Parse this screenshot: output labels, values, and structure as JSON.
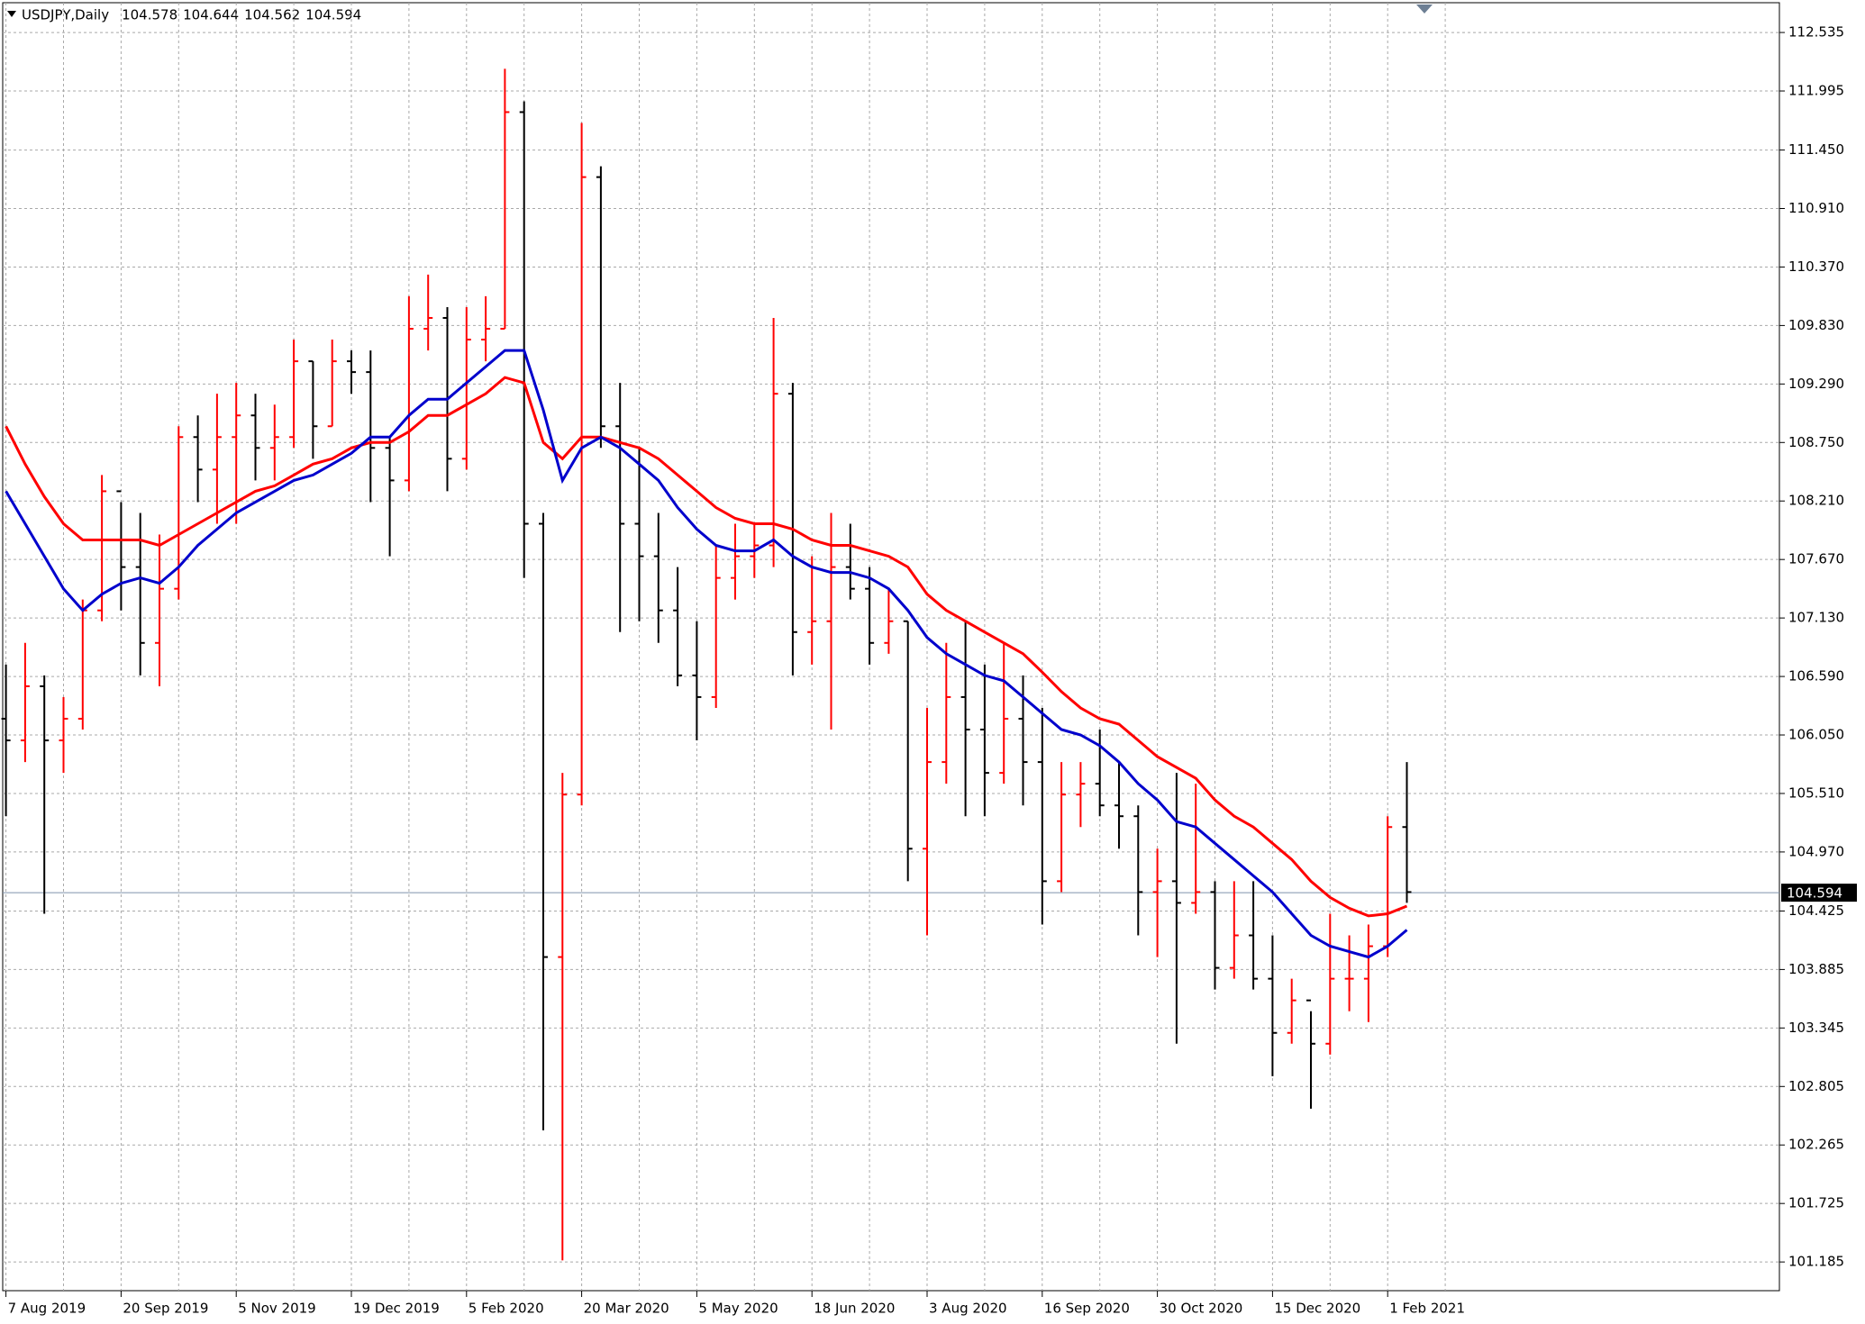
{
  "chart_data": {
    "type": "ohlc",
    "symbol": "USDJPY,Daily",
    "ohlc": [
      104.578,
      104.644,
      104.562,
      104.594
    ],
    "categories": [
      "7 Aug 2019",
      null,
      null,
      null,
      null,
      null,
      "20 Sep 2019",
      null,
      null,
      null,
      null,
      null,
      "5 Nov 2019",
      null,
      null,
      null,
      null,
      null,
      "19 Dec 2019",
      null,
      null,
      null,
      null,
      null,
      "5 Feb 2020",
      null,
      null,
      null,
      null,
      null,
      "20 Mar 2020",
      null,
      null,
      null,
      null,
      null,
      "5 May 2020",
      null,
      null,
      null,
      null,
      null,
      "18 Jun 2020",
      null,
      null,
      null,
      null,
      null,
      "3 Aug 2020",
      null,
      null,
      null,
      null,
      null,
      "16 Sep 2020",
      null,
      null,
      null,
      null,
      null,
      "30 Oct 2020",
      null,
      null,
      null,
      null,
      null,
      "15 Dec 2020",
      null,
      null,
      null,
      null,
      null,
      "1 Feb 2021",
      null
    ],
    "open": [
      106.2,
      106.0,
      106.5,
      106.0,
      106.2,
      107.2,
      108.3,
      107.6,
      106.9,
      107.4,
      108.8,
      108.5,
      108.8,
      109.0,
      108.7,
      108.8,
      109.5,
      108.9,
      109.5,
      109.4,
      108.7,
      108.4,
      109.8,
      109.9,
      108.6,
      109.7,
      109.8,
      111.8,
      108.0,
      104.0,
      105.5,
      111.2,
      108.9,
      108.0,
      107.7,
      107.2,
      106.6,
      106.4,
      107.5,
      107.7,
      107.8,
      109.2,
      107.0,
      107.1,
      107.6,
      107.4,
      106.9,
      107.1,
      105.0,
      105.8,
      106.4,
      106.1,
      105.7,
      106.2,
      105.8,
      104.7,
      105.5,
      105.6,
      105.4,
      105.3,
      104.6,
      104.7,
      104.5,
      104.6,
      103.9,
      104.2,
      103.8,
      103.3,
      103.6,
      103.2,
      103.8,
      103.8,
      104.1,
      105.2
    ],
    "high": [
      106.7,
      106.9,
      106.6,
      106.4,
      107.3,
      108.45,
      108.2,
      108.1,
      107.9,
      108.9,
      109.0,
      109.2,
      109.3,
      109.2,
      109.1,
      109.7,
      109.5,
      109.7,
      109.6,
      109.6,
      108.8,
      110.1,
      110.3,
      110.0,
      110.0,
      110.1,
      112.2,
      111.9,
      108.1,
      105.7,
      111.7,
      111.3,
      109.3,
      108.7,
      108.1,
      107.6,
      107.1,
      107.8,
      108.0,
      108.0,
      109.9,
      109.3,
      107.7,
      108.1,
      108.0,
      107.6,
      107.4,
      107.1,
      106.3,
      106.9,
      107.1,
      106.7,
      106.9,
      106.6,
      106.3,
      105.8,
      105.8,
      106.1,
      105.8,
      105.4,
      105.0,
      105.7,
      105.6,
      104.7,
      104.7,
      104.7,
      104.2,
      103.8,
      103.5,
      104.4,
      104.2,
      104.3,
      105.3,
      105.8
    ],
    "low": [
      105.3,
      105.8,
      104.4,
      105.7,
      106.1,
      107.1,
      107.2,
      106.6,
      106.5,
      107.3,
      108.2,
      108.0,
      108.0,
      108.4,
      108.4,
      108.7,
      108.6,
      108.9,
      109.2,
      108.2,
      107.7,
      108.3,
      109.6,
      108.3,
      108.5,
      109.5,
      109.8,
      107.5,
      102.4,
      101.2,
      105.4,
      108.7,
      107.0,
      107.1,
      106.9,
      106.5,
      106.0,
      106.3,
      107.3,
      107.5,
      107.6,
      106.6,
      106.7,
      106.1,
      107.3,
      106.7,
      106.8,
      104.7,
      104.2,
      105.6,
      105.3,
      105.3,
      105.6,
      105.4,
      104.3,
      104.6,
      105.2,
      105.3,
      105.0,
      104.2,
      104.0,
      103.2,
      104.4,
      103.7,
      103.8,
      103.7,
      102.9,
      103.2,
      102.6,
      103.1,
      103.5,
      103.4,
      104.0,
      104.5
    ],
    "close": [
      106.0,
      106.5,
      106.0,
      106.2,
      107.2,
      108.3,
      107.6,
      106.9,
      107.4,
      108.8,
      108.5,
      108.8,
      109.0,
      108.7,
      108.8,
      109.5,
      108.9,
      109.5,
      109.4,
      108.7,
      108.4,
      109.8,
      109.9,
      108.6,
      109.7,
      109.8,
      111.8,
      108.0,
      104.0,
      105.5,
      111.2,
      108.9,
      108.0,
      107.7,
      107.2,
      106.6,
      106.4,
      107.5,
      107.7,
      107.8,
      109.2,
      107.0,
      107.1,
      107.6,
      107.4,
      106.9,
      107.1,
      105.0,
      105.8,
      106.4,
      106.1,
      105.7,
      106.2,
      105.8,
      104.7,
      105.5,
      105.6,
      105.4,
      105.3,
      104.6,
      104.7,
      104.5,
      104.6,
      103.9,
      104.2,
      103.8,
      103.3,
      103.6,
      103.2,
      103.8,
      103.8,
      104.1,
      105.2,
      104.6
    ],
    "up_color": "#ff0000",
    "down_color": "#000000",
    "series": [
      {
        "color": "#ff0000",
        "values": [
          108.9,
          108.55,
          108.25,
          108.0,
          107.85,
          107.85,
          107.85,
          107.85,
          107.8,
          107.9,
          108.0,
          108.1,
          108.2,
          108.3,
          108.35,
          108.45,
          108.55,
          108.6,
          108.7,
          108.75,
          108.75,
          108.85,
          109.0,
          109.0,
          109.1,
          109.2,
          109.35,
          109.3,
          108.75,
          108.6,
          108.8,
          108.8,
          108.75,
          108.7,
          108.6,
          108.45,
          108.3,
          108.15,
          108.05,
          108.0,
          108.0,
          107.95,
          107.85,
          107.8,
          107.8,
          107.75,
          107.7,
          107.6,
          107.35,
          107.2,
          107.1,
          107.0,
          106.9,
          106.8,
          106.63,
          106.45,
          106.3,
          106.2,
          106.15,
          106.0,
          105.85,
          105.75,
          105.65,
          105.45,
          105.3,
          105.2,
          105.05,
          104.9,
          104.7,
          104.55,
          104.45,
          104.38,
          104.4,
          104.47
        ]
      },
      {
        "color": "#0000cc",
        "values": [
          108.3,
          108.0,
          107.7,
          107.4,
          107.2,
          107.35,
          107.45,
          107.5,
          107.45,
          107.6,
          107.8,
          107.95,
          108.1,
          108.2,
          108.3,
          108.4,
          108.45,
          108.55,
          108.65,
          108.8,
          108.8,
          109.0,
          109.15,
          109.15,
          109.3,
          109.45,
          109.6,
          109.6,
          109.05,
          108.4,
          108.7,
          108.8,
          108.7,
          108.55,
          108.4,
          108.15,
          107.95,
          107.8,
          107.75,
          107.75,
          107.85,
          107.7,
          107.6,
          107.55,
          107.55,
          107.5,
          107.4,
          107.2,
          106.95,
          106.8,
          106.7,
          106.6,
          106.55,
          106.4,
          106.25,
          106.1,
          106.05,
          105.95,
          105.8,
          105.6,
          105.45,
          105.25,
          105.2,
          105.05,
          104.9,
          104.75,
          104.6,
          104.4,
          104.2,
          104.1,
          104.05,
          104.0,
          104.1,
          104.25
        ]
      }
    ],
    "ylim": [
      100.92,
      112.81
    ],
    "yticks": [
      112.535,
      111.995,
      {
        "value": 111.45,
        "label": "111.450"
      },
      {
        "value": 110.91,
        "label": "110.910"
      },
      {
        "value": 110.37,
        "label": "110.370"
      },
      {
        "value": 109.83,
        "label": "109.830"
      },
      {
        "value": 109.29,
        "label": "109.290"
      },
      {
        "value": 108.75,
        "label": "108.750"
      },
      {
        "value": 108.21,
        "label": "108.210"
      },
      {
        "value": 107.67,
        "label": "107.670"
      },
      {
        "value": 107.13,
        "label": "107.130"
      },
      {
        "value": 106.59,
        "label": "106.590"
      },
      {
        "value": 106.05,
        "label": "106.050"
      },
      {
        "value": 105.51,
        "label": "105.510"
      },
      {
        "value": 104.97,
        "label": "104.970"
      },
      104.425,
      103.885,
      103.345,
      102.805,
      102.265,
      101.725,
      101.185
    ],
    "grid": true
  }
}
